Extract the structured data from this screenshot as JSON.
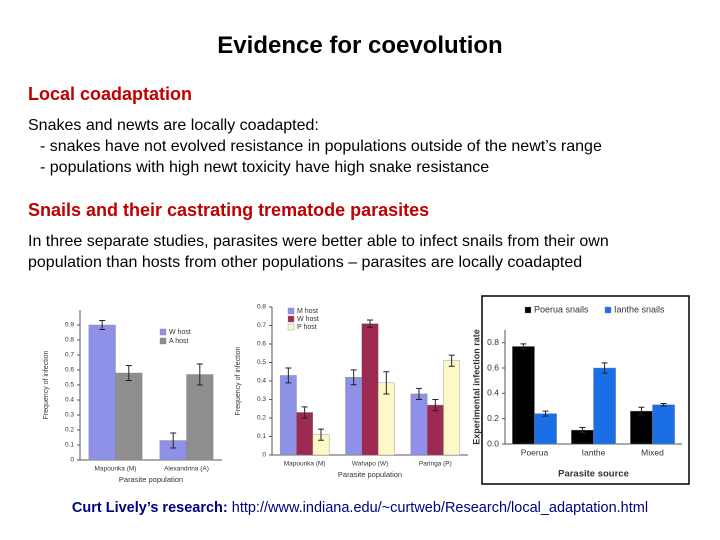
{
  "title": "Evidence for coevolution",
  "sections": [
    {
      "heading": "Local coadaptation",
      "lines": [
        "Snakes and newts are locally coadapted:",
        "- snakes have not evolved resistance in populations outside of the newt’s range",
        "- populations with high newt toxicity have high snake resistance"
      ]
    },
    {
      "heading": "Snails and their castrating trematode parasites",
      "lines": [
        "In three separate studies, parasites were better able to infect snails from their own",
        "population than hosts from other populations – parasites are locally coadapted"
      ]
    }
  ],
  "footer": {
    "label": "Curt Lively’s research:",
    "url": "http://www.indiana.edu/~curtweb/Research/local_adaptation.html"
  },
  "chart_data": [
    {
      "type": "bar",
      "ylabel": "Frequency of infection",
      "xlabel": "Parasite population",
      "categories": [
        "Mapourika (M)",
        "Alexandrina (A)"
      ],
      "series": [
        {
          "name": "W host",
          "color": "#8f90e8",
          "values": [
            0.9,
            0.13
          ],
          "errors": [
            0.03,
            0.05
          ]
        },
        {
          "name": "A host",
          "color": "#8e8e8e",
          "values": [
            0.58,
            0.57
          ],
          "errors": [
            0.05,
            0.07
          ]
        }
      ],
      "ylim": [
        0,
        1
      ],
      "yticks": [
        0,
        0.1,
        0.2,
        0.3,
        0.4,
        0.5,
        0.6,
        0.7,
        0.8,
        0.9
      ],
      "legend": "upper right"
    },
    {
      "type": "bar",
      "ylabel": "Frequency of infection",
      "xlabel": "Parasite population",
      "categories": [
        "Mapourika (M)",
        "Wahapo (W)",
        "Paringa (P)"
      ],
      "series": [
        {
          "name": "M host",
          "color": "#8f90e8",
          "values": [
            0.43,
            0.42,
            0.33
          ],
          "errors": [
            0.04,
            0.04,
            0.03
          ]
        },
        {
          "name": "W host",
          "color": "#9c2a52",
          "values": [
            0.23,
            0.71,
            0.27
          ],
          "errors": [
            0.03,
            0.02,
            0.03
          ]
        },
        {
          "name": "P host",
          "color": "#fdf8c8",
          "values": [
            0.11,
            0.39,
            0.51
          ],
          "errors": [
            0.03,
            0.06,
            0.03
          ]
        }
      ],
      "ylim": [
        0,
        0.8
      ],
      "yticks": [
        0,
        0.1,
        0.2,
        0.3,
        0.4,
        0.5,
        0.6,
        0.7,
        0.8
      ],
      "legend": "upper left"
    },
    {
      "type": "bar",
      "ylabel": "Experimental infection rate",
      "xlabel": "Parasite source",
      "categories": [
        "Poerua",
        "Ianthe",
        "Mixed"
      ],
      "series": [
        {
          "name": "Poerua snails",
          "color": "#000000",
          "values": [
            0.77,
            0.11,
            0.26
          ],
          "errors": [
            0.02,
            0.02,
            0.03
          ]
        },
        {
          "name": "Ianthe snails",
          "color": "#1a6fe6",
          "values": [
            0.24,
            0.6,
            0.31
          ],
          "errors": [
            0.02,
            0.04,
            0.01
          ]
        }
      ],
      "ylim": [
        0,
        0.9
      ],
      "yticks": [
        {
          "value": 0,
          "label": "0.0"
        },
        0.2,
        0.4,
        0.6,
        0.8
      ],
      "legend": "top"
    }
  ]
}
